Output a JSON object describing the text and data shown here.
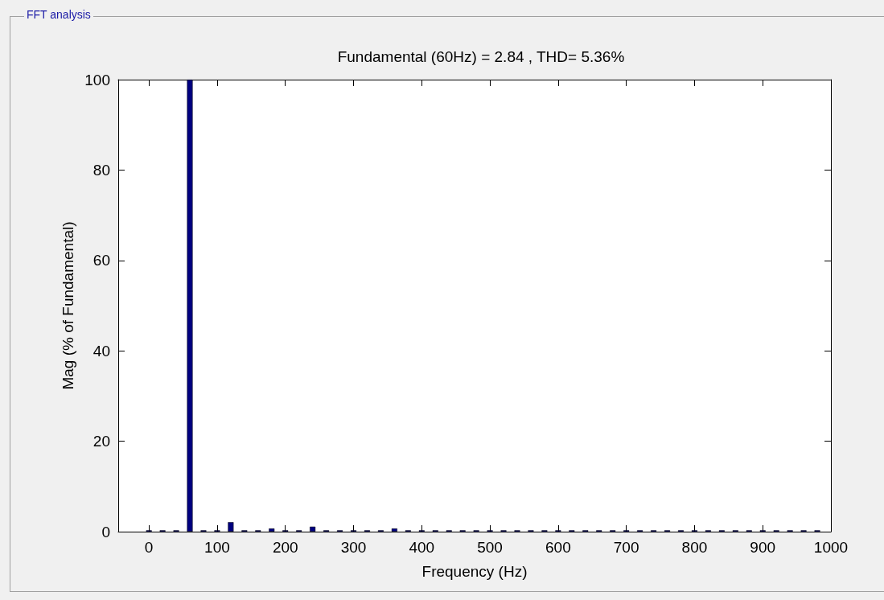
{
  "chart_data": {
    "type": "bar",
    "title": "Fundamental (60Hz) = 2.84 , THD= 5.36%",
    "xlabel": "Frequency (Hz)",
    "ylabel": "Mag (% of Fundamental)",
    "annotations": [
      "FFT analysis"
    ],
    "x": [
      0,
      20,
      40,
      60,
      80,
      100,
      120,
      140,
      160,
      180,
      200,
      220,
      240,
      260,
      280,
      300,
      320,
      340,
      360,
      380,
      400,
      420,
      440,
      460,
      480,
      500,
      520,
      540,
      560,
      580,
      600,
      620,
      640,
      660,
      680,
      700,
      720,
      740,
      760,
      780,
      800,
      820,
      840,
      860,
      880,
      900,
      920,
      940,
      960,
      980
    ],
    "values": [
      0.3,
      0.3,
      0.3,
      100,
      0.3,
      0.3,
      2.1,
      0.3,
      0.3,
      0.7,
      0.3,
      0.3,
      1.1,
      0.3,
      0.3,
      0.3,
      0.3,
      0.3,
      0.7,
      0.3,
      0.3,
      0.3,
      0.3,
      0.3,
      0.3,
      0.3,
      0.3,
      0.3,
      0.3,
      0.3,
      0.3,
      0.3,
      0.3,
      0.3,
      0.3,
      0.3,
      0.3,
      0.3,
      0.3,
      0.3,
      0.3,
      0.3,
      0.3,
      0.3,
      0.3,
      0.3,
      0.3,
      0.3,
      0.3,
      0.3
    ],
    "color": "#000080",
    "xlim": [
      -45,
      1000
    ],
    "xticks": [
      0,
      100,
      200,
      300,
      400,
      500,
      600,
      700,
      800,
      900,
      1000
    ],
    "ylim": [
      0,
      100
    ],
    "yticks": [
      0,
      20,
      40,
      60,
      80,
      100
    ],
    "grid": false
  }
}
